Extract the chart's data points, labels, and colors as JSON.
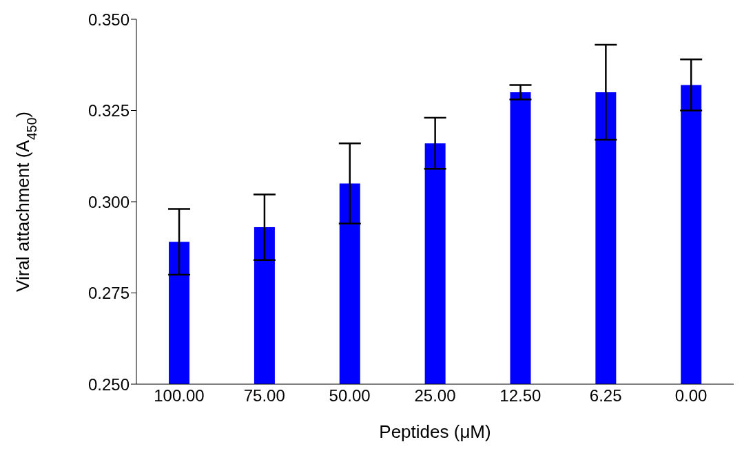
{
  "chart_data": {
    "type": "bar",
    "xlabel": "Peptides (μM)",
    "ylabel": "Viral attachment (A$_{450}$)",
    "categories": [
      "100.00",
      "75.00",
      "50.00",
      "25.00",
      "12.50",
      "6.25",
      "0.00"
    ],
    "values": [
      0.289,
      0.293,
      0.305,
      0.316,
      0.33,
      0.33,
      0.332
    ],
    "errors": [
      0.009,
      0.009,
      0.011,
      0.007,
      0.002,
      0.013,
      0.007
    ],
    "color": "#0000ff",
    "ylim": [
      0.25,
      0.35
    ],
    "yticks": [
      {
        "value": 0.25,
        "label": "0.250"
      },
      {
        "value": 0.275,
        "label": "0.275"
      },
      {
        "value": 0.3,
        "label": "0.300"
      },
      {
        "value": 0.325,
        "label": "0.325"
      },
      {
        "value": 0.35,
        "label": "0.350"
      }
    ],
    "grid": false
  }
}
